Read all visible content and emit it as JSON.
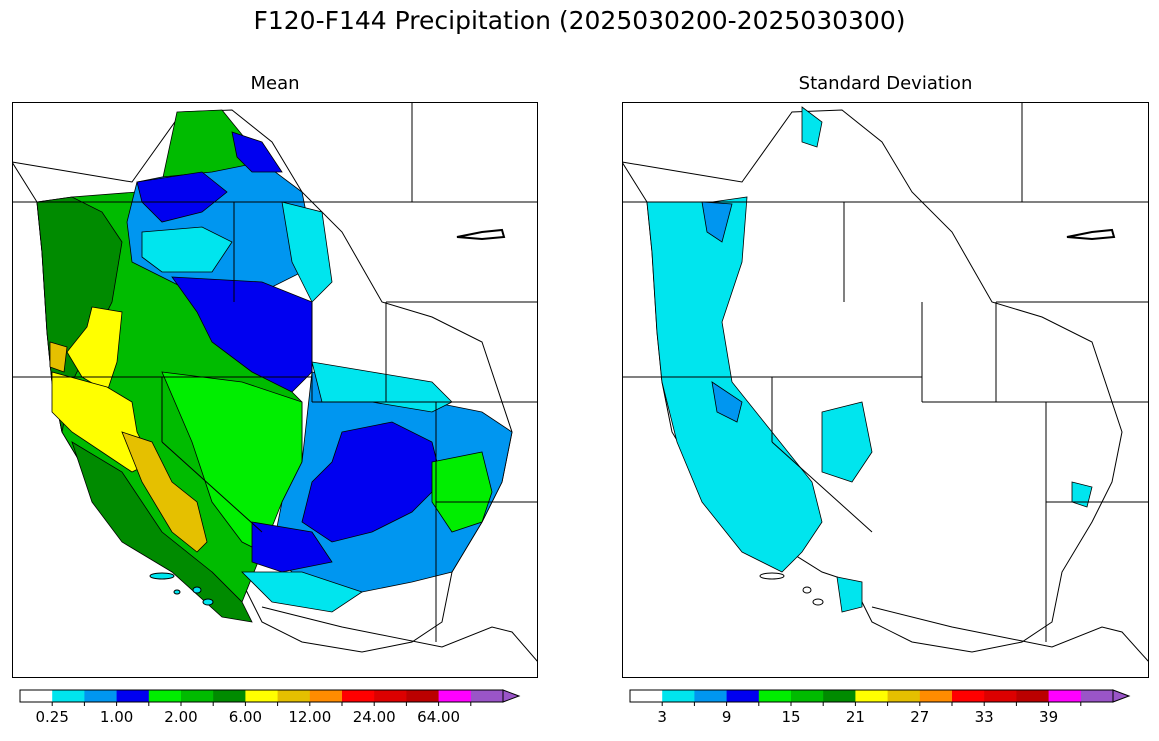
{
  "title": "F120-F144 Precipitation (2025030200-2025030300)",
  "panels": [
    {
      "title": "Mean",
      "colorbar": {
        "colors": [
          "#ffffff",
          "#00e5ee",
          "#0096f0",
          "#0000f0",
          "#00ee00",
          "#00bb00",
          "#008b00",
          "#ffff00",
          "#e5c000",
          "#ff8c00",
          "#ff0000",
          "#dd0000",
          "#bb0000",
          "#ff00ff",
          "#9a55c8"
        ],
        "tick_labels": [
          "0.25",
          "1.00",
          "2.00",
          "6.00",
          "12.00",
          "24.00",
          "64.00"
        ],
        "extend": "max"
      }
    },
    {
      "title": "Standard Deviation",
      "colorbar": {
        "colors": [
          "#ffffff",
          "#00e5ee",
          "#0096f0",
          "#0000f0",
          "#00ee00",
          "#00bb00",
          "#008b00",
          "#ffff00",
          "#e5c000",
          "#ff8c00",
          "#ff0000",
          "#dd0000",
          "#bb0000",
          "#ff00ff",
          "#9a55c8"
        ],
        "tick_labels": [
          "3",
          "9",
          "15",
          "21",
          "27",
          "33",
          "39"
        ],
        "extend": "max"
      }
    }
  ]
}
